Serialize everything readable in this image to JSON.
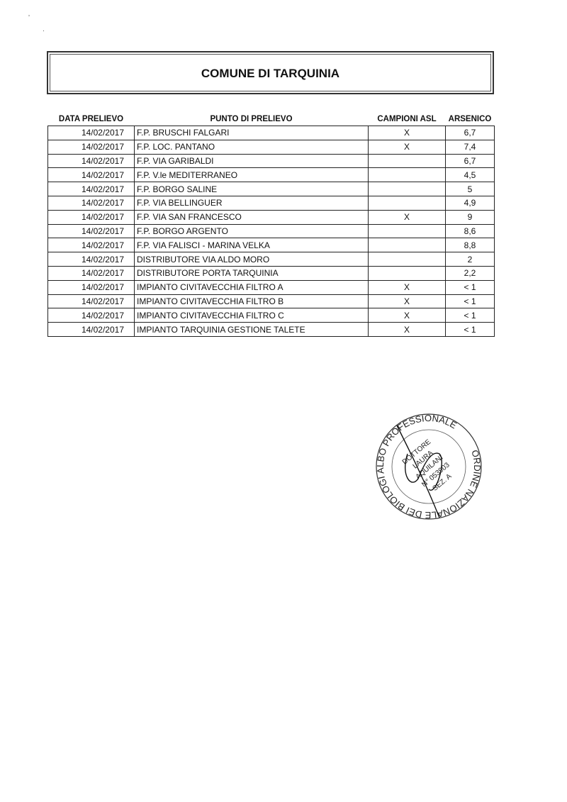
{
  "title": "COMUNE DI TARQUINIA",
  "table": {
    "headers": [
      "DATA PRELIEVO",
      "PUNTO DI PRELIEVO",
      "CAMPIONI ASL",
      "ARSENICO"
    ],
    "rows": [
      {
        "date": "14/02/2017",
        "point": "F.P. BRUSCHI FALGARI",
        "asl": "X",
        "arsenic": "6,7"
      },
      {
        "date": "14/02/2017",
        "point": "F.P. LOC. PANTANO",
        "asl": "X",
        "arsenic": "7,4"
      },
      {
        "date": "14/02/2017",
        "point": "F.P. VIA GARIBALDI",
        "asl": "",
        "arsenic": "6,7"
      },
      {
        "date": "14/02/2017",
        "point": "F.P. V.le MEDITERRANEO",
        "asl": "",
        "arsenic": "4,5"
      },
      {
        "date": "14/02/2017",
        "point": "F.P. BORGO SALINE",
        "asl": "",
        "arsenic": "5"
      },
      {
        "date": "14/02/2017",
        "point": "F.P. VIA BELLINGUER",
        "asl": "",
        "arsenic": "4,9"
      },
      {
        "date": "14/02/2017",
        "point": "F.P. VIA SAN FRANCESCO",
        "asl": "X",
        "arsenic": "9"
      },
      {
        "date": "14/02/2017",
        "point": "F.P. BORGO ARGENTO",
        "asl": "",
        "arsenic": "8,6"
      },
      {
        "date": "14/02/2017",
        "point": "F.P. VIA FALISCI - MARINA VELKA",
        "asl": "",
        "arsenic": "8,8"
      },
      {
        "date": "14/02/2017",
        "point": "DISTRIBUTORE VIA ALDO MORO",
        "asl": "",
        "arsenic": "2"
      },
      {
        "date": "14/02/2017",
        "point": "DISTRIBUTORE PORTA TARQUINIA",
        "asl": "",
        "arsenic": "2,2"
      },
      {
        "date": "14/02/2017",
        "point": "IMPIANTO CIVITAVECCHIA FILTRO A",
        "asl": "X",
        "arsenic": "< 1"
      },
      {
        "date": "14/02/2017",
        "point": "IMPIANTO CIVITAVECCHIA FILTRO B",
        "asl": "X",
        "arsenic": "< 1"
      },
      {
        "date": "14/02/2017",
        "point": "IMPIANTO CIVITAVECCHIA FILTRO C",
        "asl": "X",
        "arsenic": "< 1"
      },
      {
        "date": "14/02/2017",
        "point": "IMPIANTO TARQUINIA GESTIONE TALETE",
        "asl": "X",
        "arsenic": "< 1"
      }
    ]
  },
  "stamp": {
    "ring_text": "ORDINE NAZIONALE DEI BIOLOGI ALBO PROFESSIONALE",
    "center_lines": [
      "DOTTORE",
      "LAURA",
      "AQUILANI",
      "N° 053903",
      "SEZ. A"
    ]
  }
}
